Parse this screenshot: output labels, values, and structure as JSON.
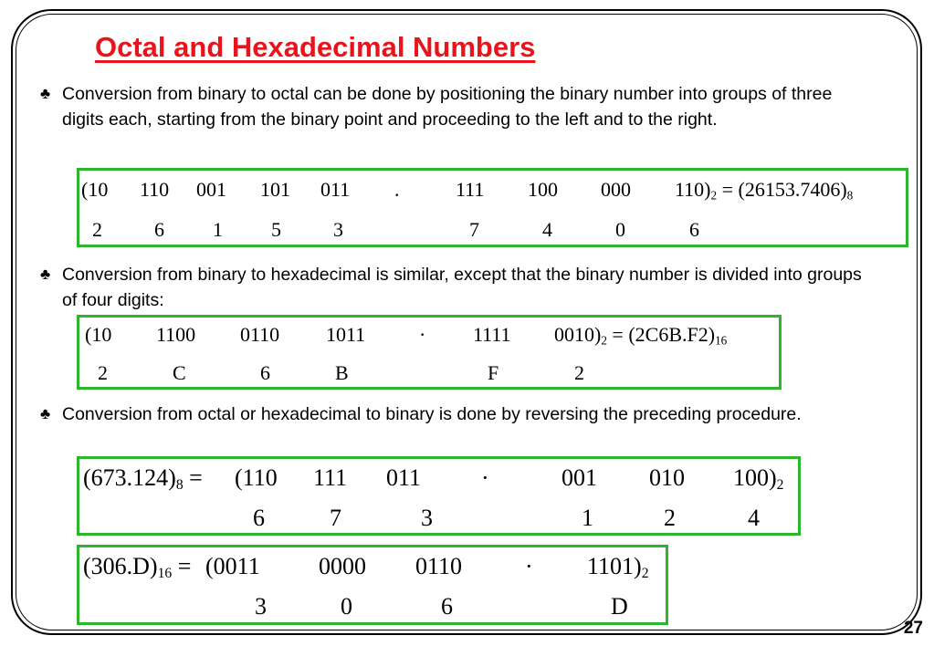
{
  "slide": {
    "title": "Octal and Hexadecimal Numbers",
    "page_number": "27"
  },
  "bullets": [
    {
      "symbol": "♣",
      "text": "Conversion from binary to octal can be done by positioning the binary number into groups of three digits each, starting from the binary point and proceeding to the left and to the right."
    },
    {
      "symbol": "♣",
      "text": "Conversion from binary to hexadecimal is similar, except that the binary number is divided into groups of four digits:"
    },
    {
      "symbol": "♣",
      "text": "Conversion from octal or hexadecimal to binary is done by reversing the preceding procedure."
    }
  ],
  "examples": {
    "bin_oct": {
      "groups": [
        "(10",
        "110",
        "001",
        "101",
        "011",
        ".",
        "111",
        "100",
        "000",
        "110)"
      ],
      "base_sub": "2",
      "equals": " = (26153.7406)",
      "result_sub": "8",
      "digits": [
        "2",
        "6",
        "1",
        "5",
        "3",
        "7",
        "4",
        "0",
        "6"
      ]
    },
    "bin_hex": {
      "groups": [
        "(10",
        "1100",
        "0110",
        "1011",
        "·",
        "1111",
        "0010)"
      ],
      "base_sub": "2",
      "equals": " = (2C6B.F2)",
      "result_sub": "16",
      "digits": [
        "2",
        "C",
        "6",
        "B",
        "F",
        "2"
      ]
    },
    "oct_bin": {
      "lhs": "(673.124)",
      "lhs_sub": "8",
      "equals": " = ",
      "groups": [
        "(110",
        "111",
        "011",
        "·",
        "001",
        "010",
        "100)"
      ],
      "result_sub": "2",
      "digits": [
        "6",
        "7",
        "3",
        "1",
        "2",
        "4"
      ]
    },
    "hex_bin": {
      "lhs": "(306.D)",
      "lhs_sub": "16",
      "equals": " = ",
      "groups": [
        "(0011",
        "0000",
        "0110",
        "·",
        "1101)"
      ],
      "result_sub": "2",
      "digits": [
        "3",
        "0",
        "6",
        "D"
      ]
    }
  },
  "colors": {
    "title": "#e8141b",
    "box_border": "#2db52d"
  }
}
